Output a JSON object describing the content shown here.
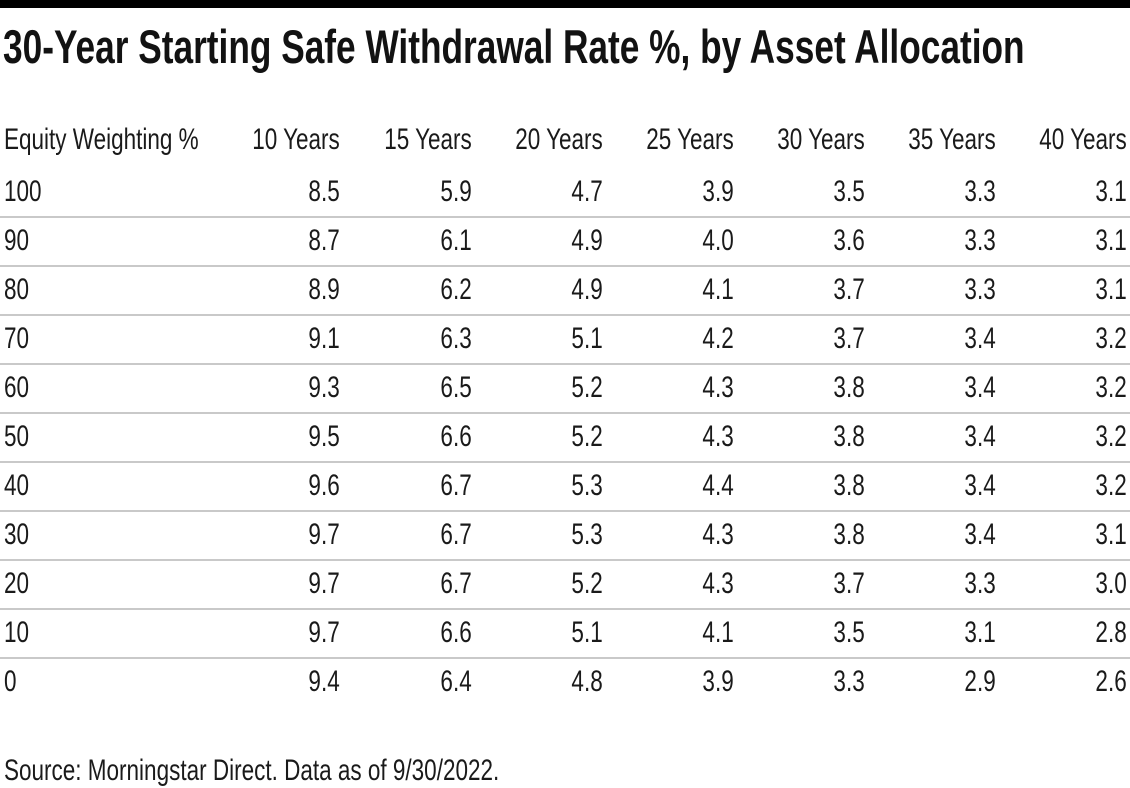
{
  "page": {
    "title": "30-Year Starting Safe Withdrawal Rate %, by Asset Allocation",
    "source_note": "Source: Morningstar Direct. Data as of 9/30/2022."
  },
  "colors": {
    "top_accent_bar": "#000000",
    "text": "#1a1a1a",
    "row_divider": "#c9c9c9",
    "background": "#ffffff"
  },
  "chart_data": {
    "type": "table",
    "title": "30-Year Starting Safe Withdrawal Rate %, by Asset Allocation",
    "columns": [
      "Equity Weighting %",
      "10 Years",
      "15 Years",
      "20 Years",
      "25 Years",
      "30 Years",
      "35 Years",
      "40 Years"
    ],
    "rows": [
      {
        "equity_weighting": "100",
        "values": [
          "8.5",
          "5.9",
          "4.7",
          "3.9",
          "3.5",
          "3.3",
          "3.1"
        ]
      },
      {
        "equity_weighting": "90",
        "values": [
          "8.7",
          "6.1",
          "4.9",
          "4.0",
          "3.6",
          "3.3",
          "3.1"
        ]
      },
      {
        "equity_weighting": "80",
        "values": [
          "8.9",
          "6.2",
          "4.9",
          "4.1",
          "3.7",
          "3.3",
          "3.1"
        ]
      },
      {
        "equity_weighting": "70",
        "values": [
          "9.1",
          "6.3",
          "5.1",
          "4.2",
          "3.7",
          "3.4",
          "3.2"
        ]
      },
      {
        "equity_weighting": "60",
        "values": [
          "9.3",
          "6.5",
          "5.2",
          "4.3",
          "3.8",
          "3.4",
          "3.2"
        ]
      },
      {
        "equity_weighting": "50",
        "values": [
          "9.5",
          "6.6",
          "5.2",
          "4.3",
          "3.8",
          "3.4",
          "3.2"
        ]
      },
      {
        "equity_weighting": "40",
        "values": [
          "9.6",
          "6.7",
          "5.3",
          "4.4",
          "3.8",
          "3.4",
          "3.2"
        ]
      },
      {
        "equity_weighting": "30",
        "values": [
          "9.7",
          "6.7",
          "5.3",
          "4.3",
          "3.8",
          "3.4",
          "3.1"
        ]
      },
      {
        "equity_weighting": "20",
        "values": [
          "9.7",
          "6.7",
          "5.2",
          "4.3",
          "3.7",
          "3.3",
          "3.0"
        ]
      },
      {
        "equity_weighting": "10",
        "values": [
          "9.7",
          "6.6",
          "5.1",
          "4.1",
          "3.5",
          "3.1",
          "2.8"
        ]
      },
      {
        "equity_weighting": "0",
        "values": [
          "9.4",
          "6.4",
          "4.8",
          "3.9",
          "3.3",
          "2.9",
          "2.6"
        ]
      }
    ],
    "source": "Source: Morningstar Direct. Data as of 9/30/2022.",
    "layout": {
      "first_column_align": "left",
      "value_columns_align": "right",
      "grid": "horizontal-dividers-between-data-rows-only"
    }
  }
}
